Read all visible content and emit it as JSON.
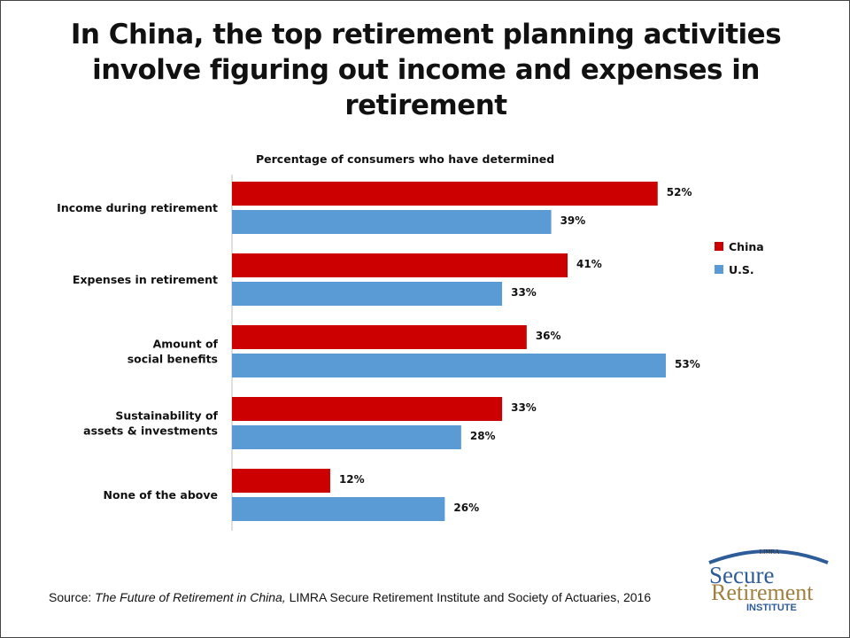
{
  "title": "In China, the top retirement planning activities involve figuring out income and expenses in retirement",
  "subtitle": "Percentage of consumers who have determined",
  "source": {
    "prefix": "Source: ",
    "italic": "The Future of Retirement in China,",
    "rest": " LIMRA Secure Retirement Institute  and Society of Actuaries, 2016"
  },
  "logo": {
    "top": "LIMRA",
    "line1": "Secure",
    "line2": "Retirement",
    "line3": "INSTITUTE"
  },
  "colors": {
    "china": "#cc0000",
    "us": "#5b9bd5",
    "axis": "#bfbfbf",
    "text": "#111111"
  },
  "chart_data": {
    "type": "bar",
    "orientation": "horizontal",
    "categories": [
      [
        "Income during retirement"
      ],
      [
        "Expenses in retirement"
      ],
      [
        "Amount of",
        "social benefits"
      ],
      [
        "Sustainability of",
        "assets & investments"
      ],
      [
        "None of the above"
      ]
    ],
    "series": [
      {
        "name": "China",
        "values": [
          52,
          41,
          36,
          33,
          12
        ],
        "labels": [
          "52%",
          "41%",
          "36%",
          "33%",
          "12%"
        ]
      },
      {
        "name": "U.S.",
        "values": [
          39,
          33,
          53,
          28,
          26
        ],
        "labels": [
          "39%",
          "33%",
          "53%",
          "28%",
          "26%"
        ]
      }
    ],
    "xlim": [
      0,
      53
    ],
    "legend_position": "right",
    "grid": false
  }
}
